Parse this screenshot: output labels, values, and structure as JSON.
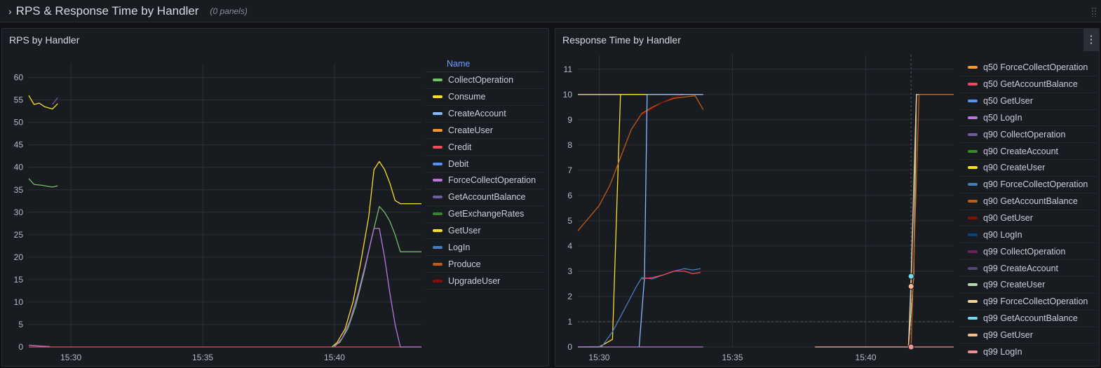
{
  "row": {
    "title": "RPS & Response Time by Handler",
    "panel_count": "(0 panels)"
  },
  "left_panel": {
    "title": "RPS by Handler",
    "legend_header": "Name",
    "legend": [
      {
        "name": "CollectOperation",
        "color": "#73bf69"
      },
      {
        "name": "Consume",
        "color": "#fade2a"
      },
      {
        "name": "CreateAccount",
        "color": "#8ab8ff"
      },
      {
        "name": "CreateUser",
        "color": "#ff9830"
      },
      {
        "name": "Credit",
        "color": "#f2495c"
      },
      {
        "name": "Debit",
        "color": "#5794f2"
      },
      {
        "name": "ForceCollectOperation",
        "color": "#b877d9"
      },
      {
        "name": "GetAccountBalance",
        "color": "#705da0"
      },
      {
        "name": "GetExchangeRates",
        "color": "#37872d"
      },
      {
        "name": "GetUser",
        "color": "#fade2a"
      },
      {
        "name": "LogIn",
        "color": "#447ebc"
      },
      {
        "name": "Produce",
        "color": "#c15c17"
      },
      {
        "name": "UpgradeUser",
        "color": "#890f02"
      }
    ]
  },
  "right_panel": {
    "title": "Response Time by Handler",
    "menu_icon": "⋮",
    "legend": [
      {
        "name": "q50 ForceCollectOperation",
        "color": "#ff9830"
      },
      {
        "name": "q50 GetAccountBalance",
        "color": "#f2495c"
      },
      {
        "name": "q50 GetUser",
        "color": "#5794f2"
      },
      {
        "name": "q50 LogIn",
        "color": "#b877d9"
      },
      {
        "name": "q90 CollectOperation",
        "color": "#705da0"
      },
      {
        "name": "q90 CreateAccount",
        "color": "#37872d"
      },
      {
        "name": "q90 CreateUser",
        "color": "#fade2a"
      },
      {
        "name": "q90 ForceCollectOperation",
        "color": "#447ebc"
      },
      {
        "name": "q90 GetAccountBalance",
        "color": "#c15c17"
      },
      {
        "name": "q90 GetUser",
        "color": "#890f02"
      },
      {
        "name": "q90 LogIn",
        "color": "#0a437c"
      },
      {
        "name": "q99 CollectOperation",
        "color": "#6d1f62"
      },
      {
        "name": "q99 CreateAccount",
        "color": "#584477"
      },
      {
        "name": "q99 CreateUser",
        "color": "#b7dbab"
      },
      {
        "name": "q99 ForceCollectOperation",
        "color": "#f4d598"
      },
      {
        "name": "q99 GetAccountBalance",
        "color": "#70dbed"
      },
      {
        "name": "q99 GetUser",
        "color": "#f9ba8f"
      },
      {
        "name": "q99 LogIn",
        "color": "#f29191"
      }
    ]
  },
  "chart_data": [
    {
      "type": "line",
      "title": "RPS by Handler",
      "xlabel": "",
      "ylabel": "",
      "x_ticks": [
        "15:30",
        "15:35",
        "15:40"
      ],
      "x_tick_minutes": [
        30,
        35,
        40
      ],
      "xlim": [
        28.4,
        43.3
      ],
      "y_ticks": [
        0,
        5,
        10,
        15,
        20,
        25,
        30,
        35,
        40,
        45,
        50,
        55,
        60
      ],
      "ylim": [
        0,
        61.5
      ],
      "grid": true,
      "legend_position": "right",
      "series": [
        {
          "name": "Consume",
          "color": "#fade2a",
          "points": [
            [
              28.4,
              56
            ],
            [
              28.6,
              54
            ],
            [
              28.8,
              54.3
            ],
            [
              29.0,
              53.5
            ],
            [
              29.3,
              53
            ],
            [
              29.5,
              54.2
            ]
          ]
        },
        {
          "name": "GetAccountBalance",
          "color": "#705da0",
          "points": [
            [
              29.3,
              54
            ],
            [
              29.5,
              55.5
            ]
          ]
        },
        {
          "name": "CollectOperation",
          "color": "#73bf69",
          "points": [
            [
              28.4,
              37.5
            ],
            [
              28.6,
              36.2
            ],
            [
              28.9,
              36
            ],
            [
              29.3,
              35.6
            ],
            [
              29.5,
              35.9
            ]
          ]
        },
        {
          "name": "ForceCollectOperation",
          "color": "#b877d9",
          "points": [
            [
              28.4,
              0.4
            ],
            [
              28.8,
              0.2
            ],
            [
              29.2,
              0.1
            ]
          ]
        },
        {
          "name": "Credit",
          "color": "#f2495c",
          "points": [
            [
              28.4,
              0
            ],
            [
              43.3,
              0
            ]
          ]
        },
        {
          "name": "GetUser",
          "color": "#fade2a",
          "points": [
            [
              39.9,
              0
            ],
            [
              40.1,
              1
            ],
            [
              40.4,
              4
            ],
            [
              40.7,
              10
            ],
            [
              41.0,
              19
            ],
            [
              41.3,
              29
            ],
            [
              41.5,
              39.5
            ],
            [
              41.7,
              41.3
            ],
            [
              41.9,
              39.5
            ],
            [
              42.1,
              36.5
            ],
            [
              42.3,
              32.6
            ],
            [
              42.5,
              31.9
            ],
            [
              43.3,
              31.9
            ]
          ]
        },
        {
          "name": "GetExchangeRates",
          "color": "#73bf69",
          "points": [
            [
              39.9,
              0
            ],
            [
              40.2,
              1
            ],
            [
              40.5,
              4
            ],
            [
              40.8,
              9
            ],
            [
              41.1,
              16
            ],
            [
              41.4,
              24
            ],
            [
              41.7,
              31.3
            ],
            [
              41.9,
              30
            ],
            [
              42.1,
              28
            ],
            [
              42.3,
              25
            ],
            [
              42.5,
              21.2
            ],
            [
              43.3,
              21.2
            ]
          ]
        },
        {
          "name": "Debit",
          "color": "#b877d9",
          "points": [
            [
              40.0,
              0
            ],
            [
              40.3,
              2
            ],
            [
              40.6,
              6
            ],
            [
              40.9,
              12
            ],
            [
              41.2,
              19
            ],
            [
              41.5,
              26.4
            ],
            [
              41.7,
              26.4
            ],
            [
              41.9,
              20
            ],
            [
              42.1,
              12
            ],
            [
              42.3,
              5
            ],
            [
              42.5,
              0
            ],
            [
              43.3,
              0
            ]
          ]
        }
      ]
    },
    {
      "type": "line",
      "title": "Response Time by Handler",
      "xlabel": "",
      "ylabel": "",
      "x_ticks": [
        "15:30",
        "15:35",
        "15:40"
      ],
      "x_tick_minutes": [
        30,
        35,
        40
      ],
      "xlim": [
        29.2,
        43.3
      ],
      "y_ticks": [
        0,
        1,
        2,
        3,
        4,
        5,
        6,
        7,
        8,
        9,
        10,
        11
      ],
      "ylim": [
        0,
        11.3
      ],
      "threshold": 1,
      "hover_x": 41.7,
      "grid": true,
      "legend_position": "right",
      "series": [
        {
          "name": "q99 ForceCollectOperation",
          "color": "#f4d598",
          "points": [
            [
              29.2,
              10
            ],
            [
              33.9,
              10
            ]
          ]
        },
        {
          "name": "q90 CreateUser",
          "color": "#fade2a",
          "points": [
            [
              29.2,
              0
            ],
            [
              30.0,
              0
            ],
            [
              30.5,
              0.3
            ],
            [
              30.8,
              10
            ],
            [
              33.9,
              10
            ]
          ]
        },
        {
          "name": "q90 GetUser",
          "color": "#c15c17",
          "points": [
            [
              29.2,
              4.6
            ],
            [
              29.6,
              5.1
            ],
            [
              30.0,
              5.6
            ],
            [
              30.4,
              6.4
            ],
            [
              30.8,
              7.5
            ],
            [
              31.2,
              8.6
            ],
            [
              31.6,
              9.25
            ],
            [
              32.0,
              9.5
            ],
            [
              32.4,
              9.7
            ],
            [
              32.8,
              9.85
            ],
            [
              33.2,
              9.9
            ],
            [
              33.6,
              9.95
            ],
            [
              33.9,
              9.4
            ]
          ]
        },
        {
          "name": "q90 GetAccountBalance",
          "color": "#890f02",
          "points": [
            [
              31.6,
              9.2
            ],
            [
              32.0,
              9.45
            ],
            [
              32.4,
              9.7
            ],
            [
              32.8,
              9.9
            ],
            [
              33.2,
              10
            ],
            [
              33.6,
              10
            ],
            [
              33.9,
              10
            ]
          ]
        },
        {
          "name": "q50 GetUser",
          "color": "#8ab8ff",
          "points": [
            [
              31.5,
              0
            ],
            [
              31.7,
              2.75
            ],
            [
              31.8,
              10
            ],
            [
              33.9,
              10
            ]
          ]
        },
        {
          "name": "q90 ForceCollectOperation",
          "color": "#447ebc",
          "points": [
            [
              29.2,
              0
            ],
            [
              30.1,
              0.02
            ],
            [
              30.5,
              0.6
            ],
            [
              30.8,
              1.2
            ],
            [
              31.1,
              1.8
            ],
            [
              31.4,
              2.4
            ],
            [
              31.6,
              2.75
            ],
            [
              32.0,
              2.7
            ],
            [
              32.4,
              2.85
            ],
            [
              32.8,
              3.0
            ],
            [
              33.2,
              3.1
            ],
            [
              33.5,
              3.05
            ],
            [
              33.8,
              3.1
            ]
          ]
        },
        {
          "name": "q50 GetAccountBalance",
          "color": "#f2495c",
          "points": [
            [
              31.6,
              2.7
            ],
            [
              32.0,
              2.75
            ],
            [
              32.4,
              2.85
            ],
            [
              32.8,
              3.0
            ],
            [
              33.2,
              3.0
            ],
            [
              33.5,
              2.9
            ],
            [
              33.8,
              2.95
            ]
          ]
        },
        {
          "name": "q50 LogIn",
          "color": "#b877d9",
          "points": [
            [
              29.2,
              0
            ],
            [
              33.9,
              0
            ]
          ]
        },
        {
          "name": "q99 CreateUser",
          "color": "#b7dbab",
          "points": [
            [
              38.1,
              0
            ],
            [
              41.6,
              0
            ],
            [
              41.8,
              2.8
            ],
            [
              41.9,
              10
            ],
            [
              43.3,
              10
            ]
          ]
        },
        {
          "name": "q99 GetAccountBalance",
          "color": "#70dbed",
          "points": [
            [
              41.6,
              0
            ],
            [
              41.7,
              2.8
            ],
            [
              41.9,
              10
            ]
          ]
        },
        {
          "name": "q99 GetUser",
          "color": "#f9ba8f",
          "points": [
            [
              41.6,
              0
            ],
            [
              41.7,
              2.4
            ],
            [
              41.9,
              10
            ]
          ]
        },
        {
          "name": "q90 GetAccountBalance",
          "color": "#c15c17",
          "points": [
            [
              41.7,
              0
            ],
            [
              42.0,
              10
            ],
            [
              43.3,
              10
            ]
          ]
        },
        {
          "name": "q99 LogIn",
          "color": "#f29191",
          "points": [
            [
              38.1,
              0
            ],
            [
              43.3,
              0
            ]
          ]
        }
      ],
      "hover_points": [
        {
          "x": 41.7,
          "y": 2.8,
          "color": "#70dbed"
        },
        {
          "x": 41.7,
          "y": 2.4,
          "color": "#f9ba8f"
        },
        {
          "x": 41.7,
          "y": 0,
          "color": "#f29191"
        }
      ]
    }
  ]
}
